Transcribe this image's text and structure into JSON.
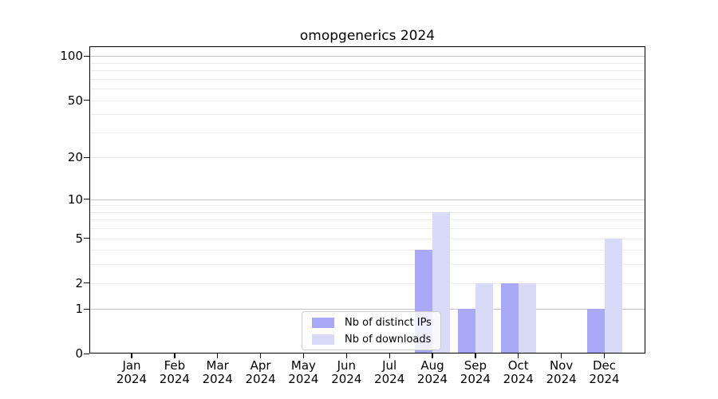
{
  "chart_data": {
    "type": "bar",
    "title": "omopgenerics 2024",
    "x_categories": [
      "Jan",
      "Feb",
      "Mar",
      "Apr",
      "May",
      "Jun",
      "Jul",
      "Aug",
      "Sep",
      "Oct",
      "Nov",
      "Dec"
    ],
    "x_year_label": "2024",
    "series": [
      {
        "name": "Nb of distinct IPs",
        "color": "#a9a9f8",
        "values": [
          0,
          0,
          0,
          0,
          0,
          0,
          0,
          4,
          1,
          2,
          0,
          1
        ]
      },
      {
        "name": "Nb of downloads",
        "color": "#d9d9f8",
        "values": [
          0,
          0,
          0,
          0,
          0,
          0,
          0,
          8,
          2,
          2,
          0,
          5
        ]
      }
    ],
    "y_axis": {
      "scale": "log1p",
      "tick_values": [
        0,
        1,
        2,
        5,
        10,
        20,
        50,
        100
      ],
      "tick_labels": [
        "0",
        "1",
        "2",
        "5",
        "10",
        "20",
        "50",
        "100"
      ],
      "strong_grid_values": [
        1,
        10,
        100
      ],
      "minor_grid_values": [
        2,
        3,
        4,
        5,
        6,
        7,
        8,
        9,
        20,
        30,
        40,
        50,
        60,
        70,
        80,
        90
      ],
      "range": [
        0,
        116
      ]
    },
    "legend": {
      "position": "bottom-center"
    },
    "colors": {
      "strong_grid": "#c2c2c2",
      "minor_grid": "#ececec",
      "axis": "#000000",
      "legend_border": "#cccccc",
      "background": "#ffffff"
    }
  }
}
